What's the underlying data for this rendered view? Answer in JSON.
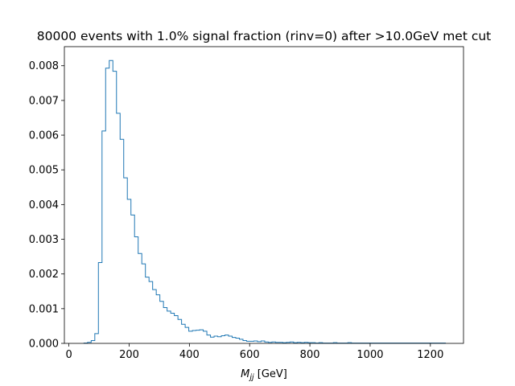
{
  "chart_data": {
    "type": "step-histogram",
    "title": "80000 events with 1.0% signal fraction (rinv=0) after >10.0GeV met cut",
    "xlabel": {
      "var": "M",
      "sub": "jj",
      "unit": " [GeV]"
    },
    "ylabel": "",
    "xlim": [
      -15,
      1310
    ],
    "ylim": [
      0,
      0.00855
    ],
    "xticks": [
      0,
      200,
      400,
      600,
      800,
      1000,
      1200
    ],
    "yticks": [
      "0.000",
      "0.001",
      "0.002",
      "0.003",
      "0.004",
      "0.005",
      "0.006",
      "0.007",
      "0.008"
    ],
    "grid": false,
    "line_color": "#1f77b4",
    "bin_edges": [
      50,
      62,
      74,
      86,
      98,
      110,
      122,
      134,
      146,
      158,
      170,
      182,
      194,
      206,
      218,
      230,
      242,
      254,
      266,
      278,
      290,
      302,
      314,
      326,
      338,
      350,
      362,
      374,
      386,
      398,
      410,
      422,
      434,
      446,
      458,
      470,
      482,
      494,
      506,
      518,
      530,
      542,
      554,
      566,
      578,
      590,
      602,
      614,
      626,
      638,
      650,
      662,
      674,
      686,
      698,
      710,
      722,
      734,
      746,
      758,
      770,
      782,
      794,
      806,
      818,
      830,
      842,
      854,
      866,
      878,
      890,
      902,
      914,
      926,
      938,
      950,
      962,
      974,
      986,
      998,
      1010,
      1022,
      1034,
      1046,
      1058,
      1070,
      1082,
      1094,
      1106,
      1118,
      1130,
      1142,
      1154,
      1166,
      1178,
      1190,
      1202,
      1214,
      1226,
      1238,
      1250
    ],
    "values": [
      1e-05,
      3e-05,
      8e-05,
      0.00028,
      0.00233,
      0.00612,
      0.00793,
      0.00815,
      0.00784,
      0.00663,
      0.00588,
      0.00477,
      0.00415,
      0.0037,
      0.00307,
      0.00259,
      0.00229,
      0.00191,
      0.00178,
      0.00155,
      0.0014,
      0.00121,
      0.00103,
      0.00093,
      0.00087,
      0.0008,
      0.00069,
      0.00055,
      0.00046,
      0.00035,
      0.00037,
      0.00038,
      0.00039,
      0.00035,
      0.00024,
      0.00018,
      0.00021,
      0.00019,
      0.00022,
      0.00024,
      0.00021,
      0.00017,
      0.00015,
      0.00012,
      8e-05,
      6e-05,
      6e-05,
      7e-05,
      5e-05,
      7e-05,
      4e-05,
      3e-05,
      4e-05,
      3e-05,
      3e-05,
      2e-05,
      3e-05,
      4e-05,
      2e-05,
      3e-05,
      2e-05,
      3e-05,
      2e-05,
      2e-05,
      1e-05,
      2e-05,
      1e-05,
      1e-05,
      1e-05,
      2e-05,
      1e-05,
      1e-05,
      1e-05,
      2e-05,
      1e-05,
      1e-05,
      1e-05,
      1e-05,
      1e-05,
      1e-05,
      1e-05,
      1e-05,
      1e-05,
      1e-05,
      1e-05,
      1e-05,
      1e-05,
      1e-05,
      1e-05,
      1e-05,
      1e-05,
      1e-05,
      1e-05,
      1e-05,
      1e-05,
      1e-05,
      1e-05,
      1e-05,
      1e-05,
      1e-05
    ]
  }
}
